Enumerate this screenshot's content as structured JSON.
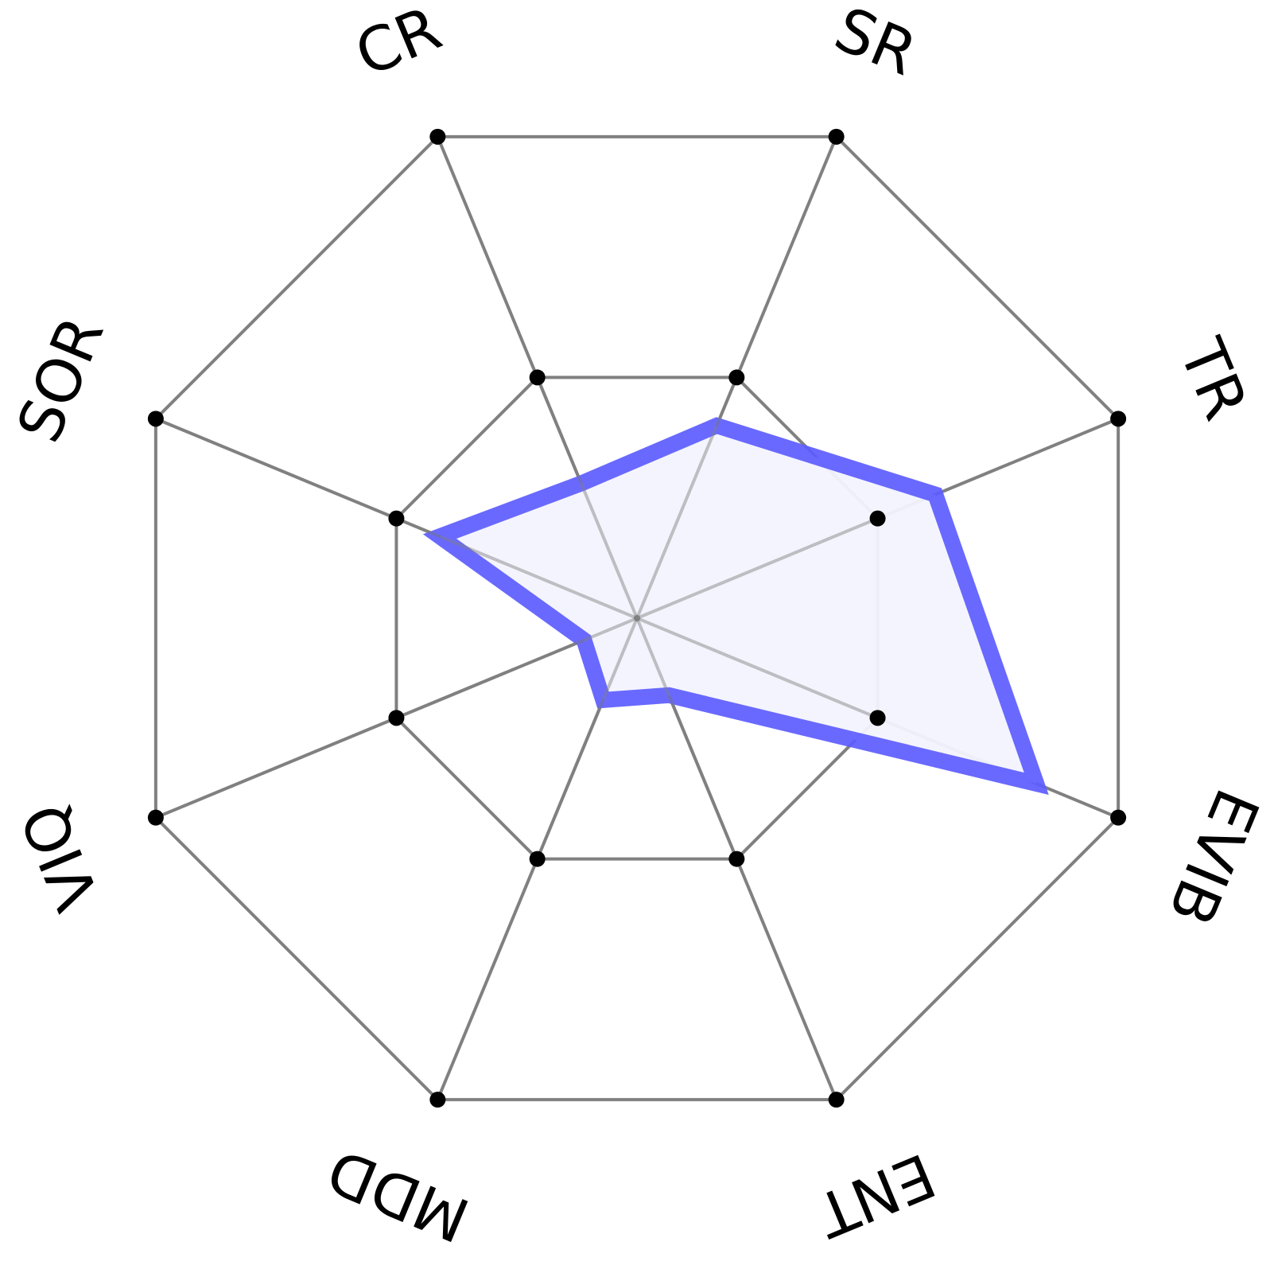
{
  "chart_data": {
    "type": "radar",
    "axes": [
      "SR",
      "TR",
      "EVIB",
      "ENT",
      "MDD",
      "VIQ",
      "SOR",
      "CR"
    ],
    "rings": 2,
    "series": [
      {
        "values": [
          0.4,
          0.62,
          0.83,
          0.16,
          0.17,
          0.11,
          0.41,
          0.28
        ]
      }
    ],
    "grid": true,
    "colors": {
      "grid": "#808080",
      "series_line": "#5c5cff",
      "series_fill": "#f3f3fe",
      "marker": "#000000"
    }
  }
}
